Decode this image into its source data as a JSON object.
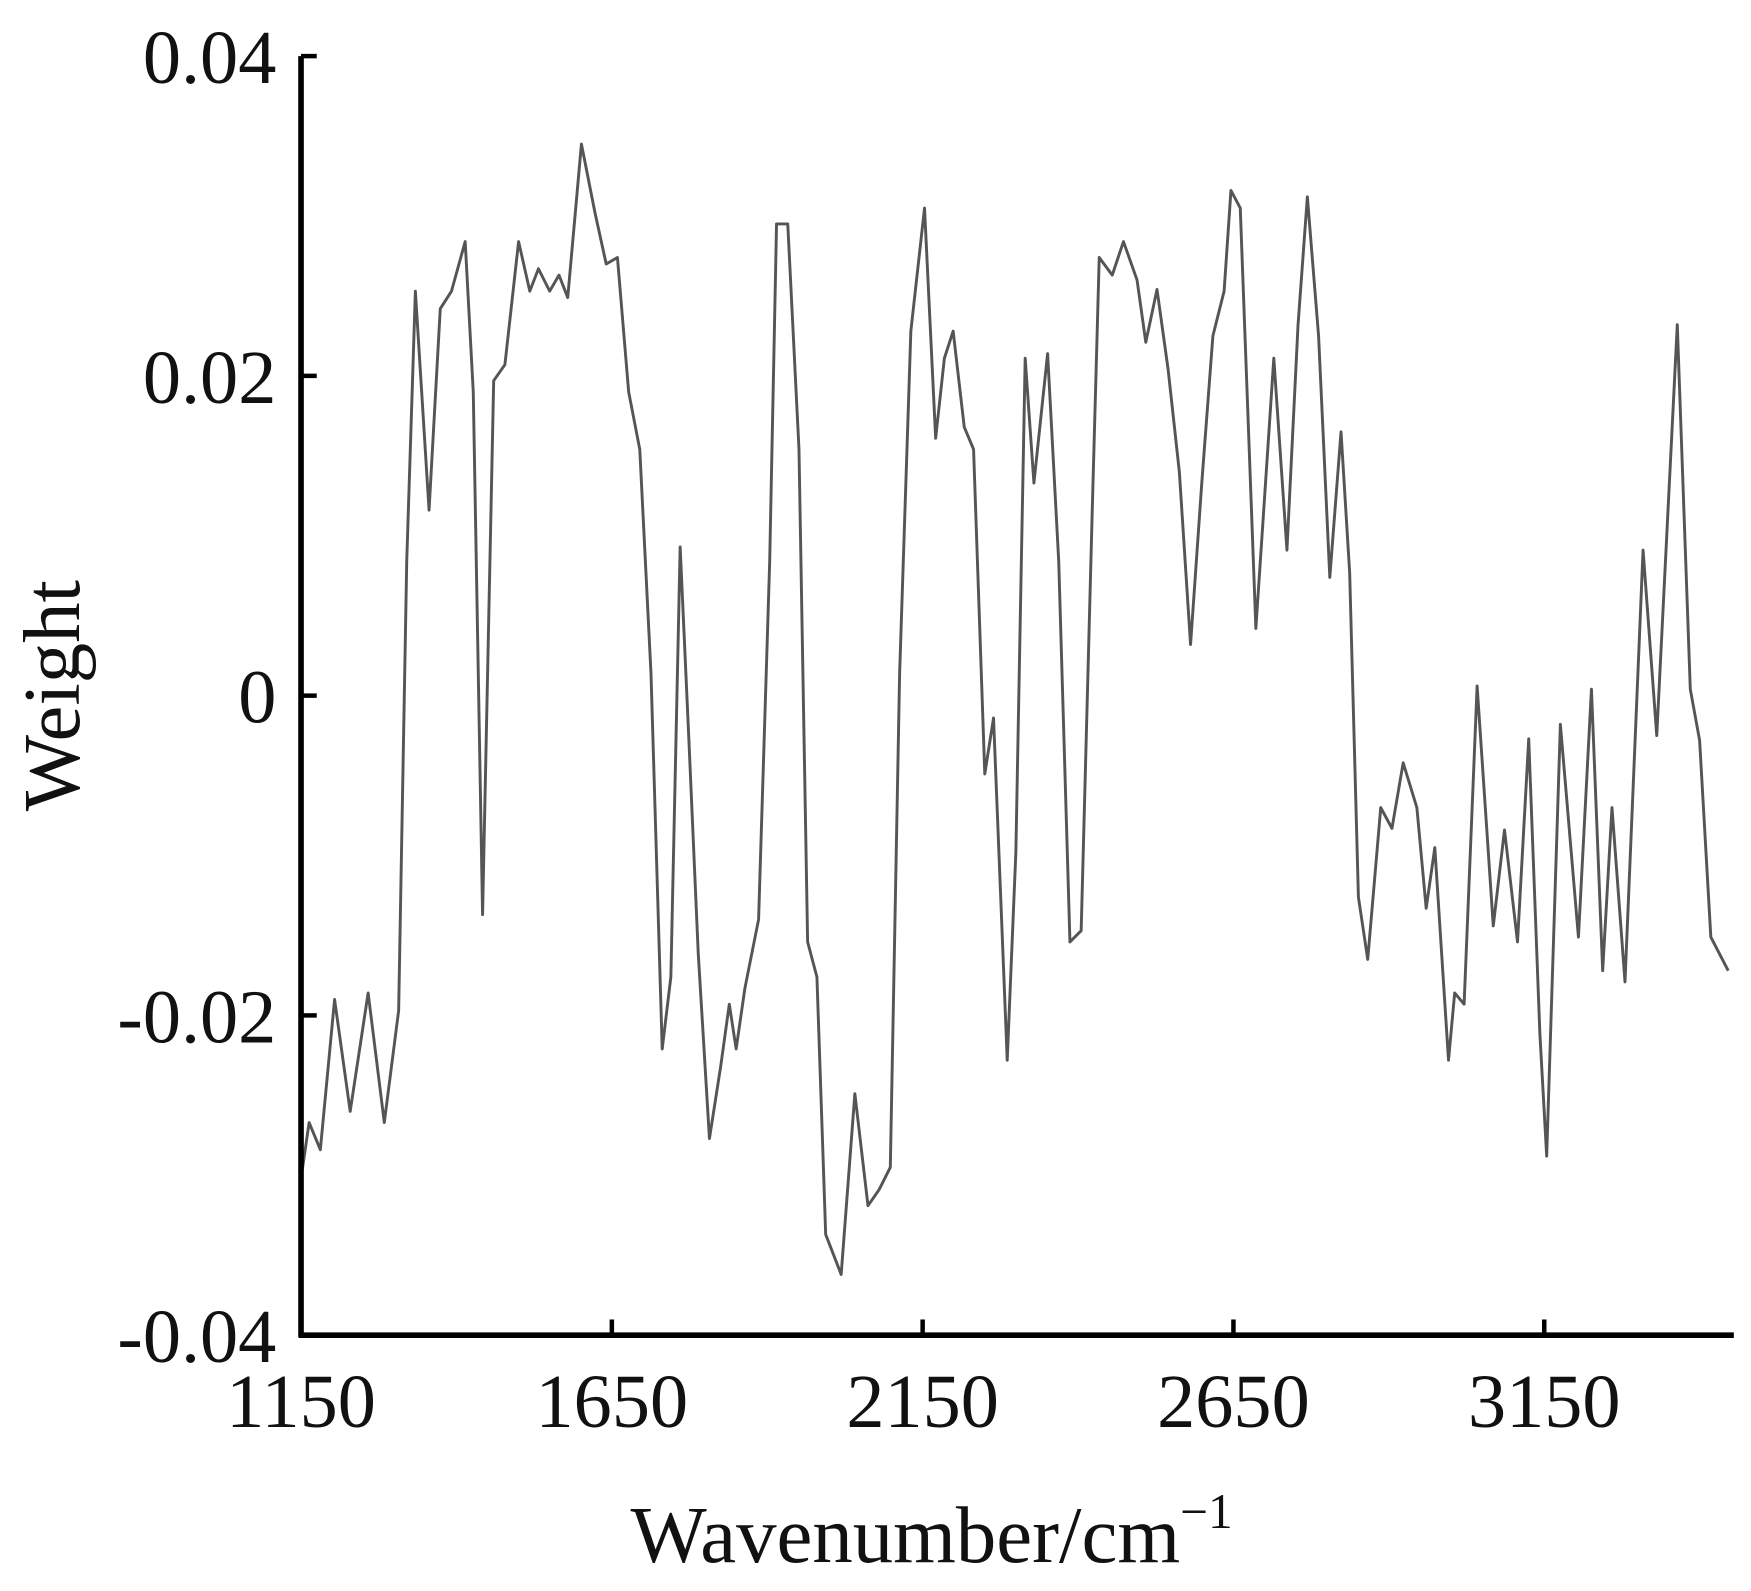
{
  "chart_data": {
    "type": "line",
    "x_label": "Wavenumber/cm",
    "x_label_superscript": "−1",
    "y_label": "Weight",
    "color": "#555555",
    "xlim": [
      1150,
      3455
    ],
    "xticks": [
      1150,
      1650,
      2150,
      2650,
      3150
    ],
    "ylim": [
      -0.04,
      0.04
    ],
    "yticks": [
      -0.04,
      -0.02,
      0,
      0.02,
      0.04
    ],
    "x": [
      1150,
      1163,
      1181,
      1204,
      1229,
      1258,
      1284,
      1307,
      1320,
      1334,
      1356,
      1374,
      1392,
      1414,
      1427,
      1442,
      1460,
      1478,
      1500,
      1518,
      1532,
      1550,
      1565,
      1579,
      1601,
      1623,
      1641,
      1659,
      1677,
      1695,
      1713,
      1731,
      1745,
      1760,
      1774,
      1789,
      1807,
      1825,
      1839,
      1850,
      1864,
      1886,
      1904,
      1915,
      1933,
      1951,
      1965,
      1980,
      1994,
      2019,
      2041,
      2062,
      2080,
      2098,
      2113,
      2131,
      2153,
      2171,
      2185,
      2199,
      2217,
      2232,
      2250,
      2264,
      2286,
      2300,
      2315,
      2329,
      2351,
      2369,
      2387,
      2405,
      2423,
      2434,
      2455,
      2473,
      2495,
      2509,
      2527,
      2545,
      2563,
      2581,
      2599,
      2617,
      2635,
      2646,
      2661,
      2686,
      2715,
      2736,
      2754,
      2769,
      2787,
      2805,
      2823,
      2837,
      2851,
      2866,
      2887,
      2905,
      2923,
      2945,
      2960,
      2974,
      2996,
      3006,
      3021,
      3042,
      3068,
      3086,
      3107,
      3125,
      3143,
      3154,
      3176,
      3205,
      3226,
      3244,
      3259,
      3280,
      3309,
      3331,
      3364,
      3385,
      3400,
      3418,
      3446
    ],
    "y": [
      -0.0302,
      -0.0267,
      -0.0284,
      -0.019,
      -0.026,
      -0.0186,
      -0.0267,
      -0.0197,
      0.0084,
      0.0253,
      0.0116,
      0.0242,
      0.0253,
      0.0284,
      0.019,
      -0.0137,
      0.0197,
      0.0207,
      0.0284,
      0.0253,
      0.0267,
      0.0253,
      0.0263,
      0.0249,
      0.0345,
      0.0302,
      0.027,
      0.0274,
      0.019,
      0.0154,
      0.0014,
      -0.0221,
      -0.0176,
      0.0093,
      -0.0028,
      -0.0161,
      -0.0277,
      -0.0232,
      -0.0193,
      -0.0221,
      -0.0183,
      -0.014,
      0.0084,
      0.0295,
      0.0295,
      0.0154,
      -0.0154,
      -0.0176,
      -0.0337,
      -0.0362,
      -0.0249,
      -0.0319,
      -0.0309,
      -0.0295,
      0.0014,
      0.0228,
      0.0305,
      0.0161,
      0.0211,
      0.0228,
      0.0168,
      0.0154,
      -0.0049,
      -0.0014,
      -0.0228,
      -0.0098,
      0.0211,
      0.0133,
      0.0214,
      0.0084,
      -0.0154,
      -0.0147,
      0.0119,
      0.0274,
      0.0263,
      0.0284,
      0.026,
      0.0221,
      0.0254,
      0.0204,
      0.014,
      0.0032,
      0.0133,
      0.0225,
      0.0253,
      0.0316,
      0.0305,
      0.0042,
      0.0211,
      0.0091,
      0.0232,
      0.0312,
      0.0225,
      0.0074,
      0.0165,
      0.0077,
      -0.0126,
      -0.0165,
      -0.007,
      -0.0083,
      -0.0042,
      -0.007,
      -0.0133,
      -0.0095,
      -0.0228,
      -0.0186,
      -0.0193,
      0.0006,
      -0.0144,
      -0.0084,
      -0.0154,
      -0.0027,
      -0.0211,
      -0.0288,
      -0.0018,
      -0.0151,
      0.0004,
      -0.0172,
      -0.007,
      -0.0179,
      0.0091,
      -0.0025,
      0.0232,
      0.0004,
      -0.0028,
      -0.0151,
      -0.0172
    ]
  }
}
